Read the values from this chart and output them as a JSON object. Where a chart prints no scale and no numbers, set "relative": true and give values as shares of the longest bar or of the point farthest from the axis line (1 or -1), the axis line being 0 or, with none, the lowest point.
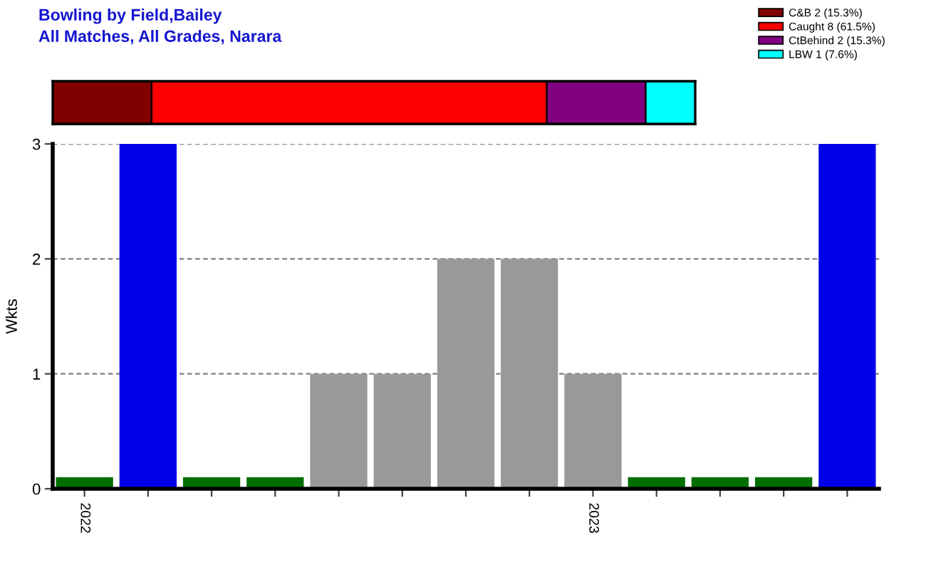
{
  "chart_data": [
    {
      "type": "bar",
      "title": "Bowling by Field,Bailey",
      "subtitle": "All Matches, All Grades, Narara",
      "orientation": "horizontal",
      "stacked": true,
      "relative": true,
      "categories": [
        null
      ],
      "legend": "top right",
      "series": [
        {
          "name": "C&B 2 (15.3%)",
          "color": "#800000",
          "values": [
            0.154
          ]
        },
        {
          "name": "Caught 8 (61.5%)",
          "color": "#ff0000",
          "values": [
            0.615
          ]
        },
        {
          "name": "CtBehind 2 (15.3%)",
          "color": "#800080",
          "values": [
            0.154
          ]
        },
        {
          "name": "LBW 1 (7.6%)",
          "color": "#00ffff",
          "values": [
            0.077
          ]
        }
      ]
    },
    {
      "type": "bar",
      "ylabel": "Wkts",
      "categories": [
        "2022",
        null,
        null,
        null,
        null,
        null,
        null,
        null,
        "2023",
        null,
        null,
        null,
        null
      ],
      "values": [
        0.1,
        3,
        0.1,
        0.1,
        1,
        1,
        2,
        2,
        1,
        0.1,
        0.1,
        0.1,
        3
      ],
      "colors": [
        "#006e00",
        "#0000e8",
        "#006e00",
        "#006e00",
        "#999999",
        "#999999",
        "#999999",
        "#999999",
        "#999999",
        "#006e00",
        "#006e00",
        "#006e00",
        "#0000e8"
      ],
      "ylim": [
        0,
        3
      ],
      "yticks": [
        0,
        1,
        2,
        3
      ],
      "grid": "y"
    }
  ]
}
